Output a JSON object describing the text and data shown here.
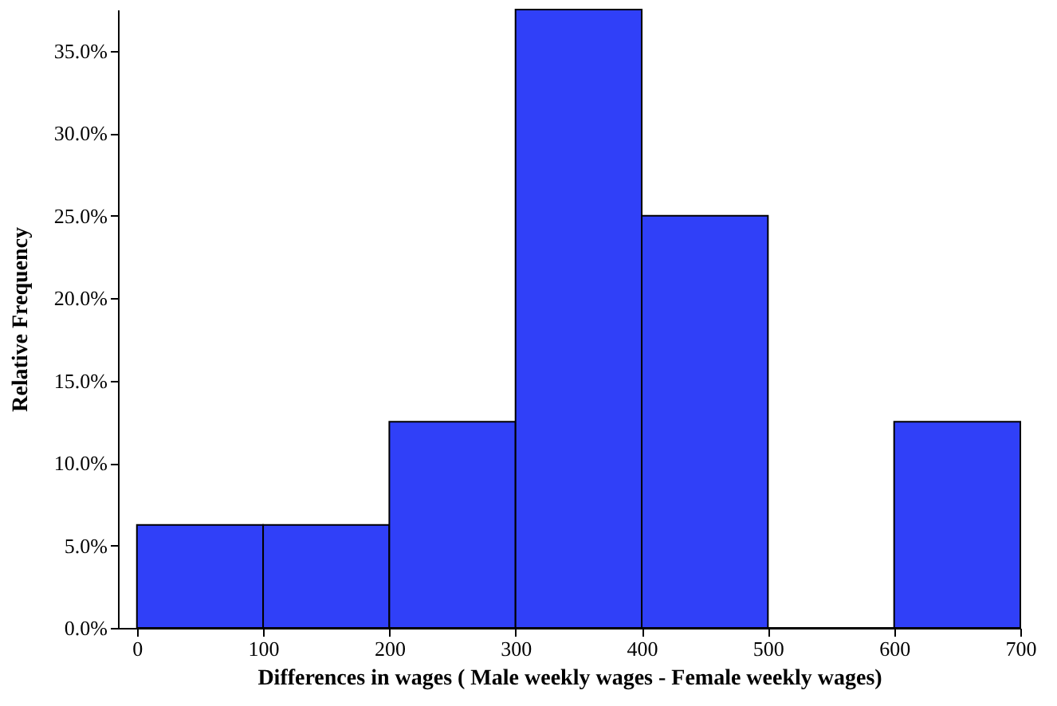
{
  "chart_data": {
    "type": "histogram",
    "xlabel": "Differences in wages ( Male weekly wages - Female weekly wages)",
    "ylabel": "Relative Frequency",
    "bins": [
      0,
      100,
      200,
      300,
      400,
      500,
      600,
      700
    ],
    "values": [
      6.25,
      6.25,
      12.5,
      37.5,
      25,
      0,
      12.5
    ],
    "color": "#3040f8",
    "xlim": [
      -15,
      700
    ],
    "xticks": [
      0,
      100,
      200,
      300,
      400,
      500,
      600,
      700
    ],
    "ylim": [
      0,
      37.5
    ],
    "yticks": [
      {
        "value": 0,
        "label": "0.0%"
      },
      {
        "value": 5,
        "label": "5.0%"
      },
      {
        "value": 10,
        "label": "10.0%"
      },
      {
        "value": 15,
        "label": "15.0%"
      },
      {
        "value": 20,
        "label": "20.0%"
      },
      {
        "value": 25,
        "label": "25.0%"
      },
      {
        "value": 30,
        "label": "30.0%"
      },
      {
        "value": 35,
        "label": "35.0%"
      }
    ],
    "grid": false
  }
}
